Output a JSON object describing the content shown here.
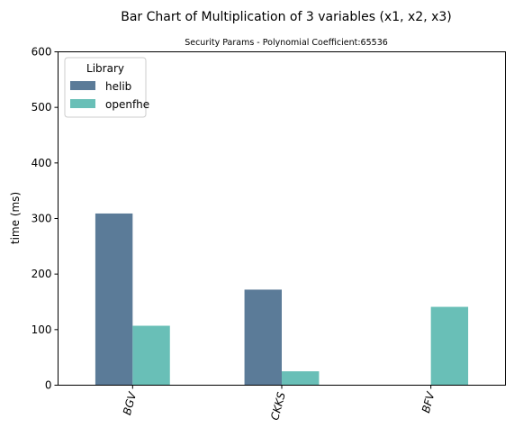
{
  "chart_data": {
    "type": "bar",
    "title": "Bar Chart of Multiplication of 3 variables (x1, x2, x3)",
    "subtitle": "Security Params - Polynomial Coefficient:65536",
    "xlabel": "",
    "ylabel": "time (ms)",
    "ylim": [
      0,
      600
    ],
    "yticks": [
      0,
      100,
      200,
      300,
      400,
      500,
      600
    ],
    "categories": [
      "BGV",
      "CKKS",
      "BFV"
    ],
    "series": [
      {
        "name": "helib",
        "color": "#5b7b98",
        "values": [
          309,
          172,
          null
        ]
      },
      {
        "name": "openfhe",
        "color": "#69bfb7",
        "values": [
          107,
          25,
          141
        ]
      }
    ],
    "legend": {
      "title": "Library",
      "placement": "top-left"
    },
    "grid": false
  }
}
